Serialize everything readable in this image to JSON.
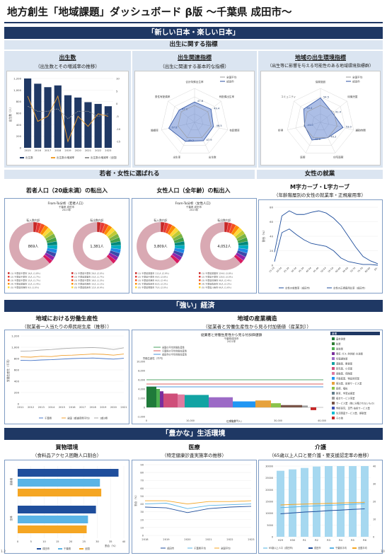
{
  "header": {
    "title": "地方創生「地域課題」ダッシュボード β版 ～千葉県 成田市～"
  },
  "sections": {
    "new_japan": "「新しい日本・楽しい日本」",
    "birth_indicators": "出生に関する指標",
    "young_women": "若者・女性に選ばれる",
    "female_work": "女性の就業",
    "strong_economy": "「強い」経済",
    "rich_life": "「豊かな」生活環境"
  },
  "panels": {
    "births": {
      "title": "出生数",
      "sub": "（出生数とその増減率の推移）"
    },
    "birth_related": {
      "title": "出生関連指標",
      "sub": "（出生に関連する基本的な指標）"
    },
    "birth_env": {
      "title": "地域の出生環境指標",
      "sub": "（出生等に影響を与える可能性のある地域環境指標群）"
    },
    "youth_migration": {
      "title": "若者人口（20歳未満）の転出入"
    },
    "female_migration": {
      "title": "女性人口（全年齢）の転出入"
    },
    "m_curve": {
      "title": "M字カーブ・L字カーブ",
      "sub": "（年齢階層別の女性の就業率・正規雇用率）"
    },
    "labor_productivity": {
      "title": "地域における労働生産性",
      "sub": "（就業者一人当たりの県民総生産（推移））"
    },
    "industry_structure": {
      "title": "地域の産業構造",
      "sub": "（従業者と労働生産性から見る付加価値（産業別））"
    },
    "shopping": {
      "title": "買物環境",
      "sub": "（食料品アクセス困難人口割合）"
    },
    "medical": {
      "title": "医療",
      "sub": "（特定健康診査実施率の推移）"
    },
    "care": {
      "title": "介護",
      "sub": "（65歳以上人口と要介護・要支援認定率の推移）"
    }
  },
  "births_chart": {
    "years": [
      "2015",
      "2016",
      "2017",
      "2018",
      "2019",
      "2020",
      "2021",
      "2022",
      "2023"
    ],
    "values": [
      1200,
      1110,
      1050,
      1080,
      910,
      870,
      790,
      760,
      720
    ],
    "yticks": [
      "1,200",
      "1,000",
      "800",
      "600",
      "400",
      "200",
      "0"
    ],
    "ylabel": "出生数（人）",
    "y2ticks": [
      "10",
      "5",
      "0",
      "-5",
      "-10",
      "-15"
    ],
    "legend": [
      "出生数",
      "出生数の増減率",
      "出生数の増減率（全国）"
    ]
  },
  "radar_related": {
    "legend": [
      "全国平均",
      "成田市"
    ],
    "labels": [
      "合計特殊出生率",
      "有配偶出生率",
      "有配偶率",
      "出生数",
      "出生率",
      "婚姻率",
      "男性有配偶率"
    ],
    "values": [
      "47.6",
      "49.4",
      "46.5",
      "47.9",
      "49.2",
      "57.8",
      "47.0"
    ]
  },
  "radar_env": {
    "legend": [
      "全国平均",
      "成田市"
    ],
    "labels": [
      "保育施設",
      "待機児童",
      "通勤時間",
      "住宅面積",
      "医療",
      "所得",
      "コミュニティ"
    ],
    "values": [
      "54.5",
      "41.4",
      "53.0",
      "45.2",
      "48.6",
      "43.0",
      "50.4"
    ]
  },
  "donut_youth": {
    "heading": "From-To分析（若者人口）",
    "sub1": "千葉県 成田市",
    "sub2": "2023年",
    "left_label": "転入数内訳",
    "left_center": "869人",
    "right_label": "転出数内訳",
    "right_center": "1,381人",
    "left_legend": [
      "(1) 千葉県千葉市 16人 (1.8%)",
      "(2) 千葉県千葉市 15人 (1.7%)",
      "(3) 千葉県千葉市 15人 (1.7%)",
      "(4) 千葉県富里市 12人 (1.4%)",
      "(5) 千葉県印西市 9人 (1.0%)"
    ],
    "right_legend": [
      "(1) 千葉県千葉市 28人 (2.0%)",
      "(2) 千葉県富里市 23人 (1.7%)",
      "(3) 千葉県千葉市 18人 (1.3%)",
      "(4) 千葉県印西市 15人 (1.1%)",
      "(5) 千葉県佐倉市 12人 (0.9%)"
    ]
  },
  "donut_female": {
    "heading": "From-To分析（女性人口）",
    "sub1": "千葉県 成田市",
    "sub2": "2023年",
    "left_label": "転入数内訳",
    "left_center": "3,809人",
    "right_label": "転出数内訳",
    "right_center": "4,052人",
    "left_legend": [
      "(1) 千葉県富里市 111人 (2.9%)",
      "(2) 千葉県千葉市 99人 (2.6%)",
      "(3) 千葉県印西市 90人 (2.4%)",
      "(4) 千葉県佐倉市 82人 (2.2%)",
      "(5) 千葉県香取市 75人 (2.0%)"
    ],
    "right_legend": [
      "(1) 千葉県富里市 154人 (3.8%)",
      "(2) 千葉県千葉市 120人 (3.0%)",
      "(3) 千葉県印西市 98人 (2.4%)",
      "(4) 千葉県佐倉市 90人 (2.2%)",
      "(5) 千葉県八街市 66人 (1.6%)"
    ]
  },
  "m_curve_chart": {
    "ylabel": "割合（%）",
    "yticks": [
      "80",
      "60",
      "40",
      "20",
      "0"
    ],
    "ages": [
      "15-19",
      "20-24",
      "25-29",
      "30-34",
      "35-39",
      "40-44",
      "45-49",
      "50-54",
      "55-59",
      "60-64",
      "65-69",
      "70-74",
      "75-79",
      "80-84",
      "85-"
    ],
    "employment": [
      18,
      68,
      75,
      70,
      70,
      73,
      75,
      72,
      65,
      55,
      40,
      25,
      12,
      6,
      2
    ],
    "regular": [
      5,
      45,
      50,
      42,
      35,
      30,
      28,
      26,
      20,
      10,
      5,
      3,
      1,
      1,
      0
    ],
    "legend": [
      "女性の就業率（成田市）",
      "女性の正規雇用比率（成田市）"
    ]
  },
  "productivity_chart": {
    "years": [
      "2011",
      "2012",
      "2013",
      "2014",
      "2015",
      "2016",
      "2017",
      "2018",
      "2019",
      "2020",
      "2021"
    ],
    "ylabel": "労働生産性（千円）",
    "yticks": [
      "1,200",
      "1,000",
      "800",
      "600",
      "400",
      "200",
      "0"
    ],
    "chiba": [
      830,
      825,
      840,
      835,
      855,
      860,
      870,
      880,
      875,
      860,
      880
    ],
    "national": [
      930,
      935,
      950,
      960,
      975,
      985,
      990,
      995,
      985,
      960,
      990
    ],
    "tokyo": [
      770,
      765,
      775,
      780,
      790,
      800,
      805,
      810,
      800,
      790,
      805
    ],
    "legend": [
      "千葉県",
      "全国（都道府県平均）",
      "1都3県"
    ]
  },
  "industry_chart": {
    "heading": "従業者と労働生産性から見る付加価値額",
    "sub1": "千葉県成田市",
    "sub2": "2021年",
    "ylabel": "労働生産性（千円）",
    "xlabel": "従業者数（人）",
    "xticks": [
      "0",
      "10,000",
      "20,000",
      "30,000",
      "40,000"
    ],
    "yticks": [
      "10,000",
      "8,000",
      "6,000",
      "4,000",
      "2,000",
      "0",
      "-2,000"
    ],
    "legend_lines": [
      "全国の平均労働生産性",
      "千葉県の平均労働生産性",
      "成田市の平均労働生産性"
    ],
    "legend_header": "産業",
    "industries": [
      {
        "name": "農林漁業",
        "color": "#1f7a3a"
      },
      {
        "name": "鉱業",
        "color": "#2e7d32"
      },
      {
        "name": "製造業",
        "color": "#4caf50"
      },
      {
        "name": "電気･ガス･熱供給･水道業",
        "color": "#7a2f9e"
      },
      {
        "name": "情報通信業",
        "color": "#9c6ac6"
      },
      {
        "name": "運輸業、郵便業",
        "color": "#12a3a3"
      },
      {
        "name": "卸売業、小売業",
        "color": "#cf4e7a"
      },
      {
        "name": "金融業、保険業",
        "color": "#e07aa0"
      },
      {
        "name": "不動産業、物品賃貸業",
        "color": "#2196f3"
      },
      {
        "name": "宿泊業、飲食サービス業",
        "color": "#e6a23c"
      },
      {
        "name": "医療、福祉",
        "color": "#8bc34a"
      },
      {
        "name": "教育、学習支援業",
        "color": "#607d8b"
      },
      {
        "name": "複合サービス事業",
        "color": "#9e9e9e"
      },
      {
        "name": "サービス業（他に分類されないもの）",
        "color": "#795548"
      },
      {
        "name": "学術研究、専門･技術サービス業",
        "color": "#3f51b5"
      },
      {
        "name": "生活関連サービス業、娯楽業",
        "color": "#00bcd4"
      },
      {
        "name": "その他",
        "color": "#c62828"
      }
    ]
  },
  "shopping_chart": {
    "xlabel": "割合（%）",
    "xticks": [
      "0",
      "5",
      "10",
      "15",
      "20",
      "25",
      "30",
      "35",
      "40"
    ],
    "groups": [
      "高齢者",
      "全体"
    ],
    "bars": [
      38.0,
      31.0,
      31.5,
      29.5,
      26.5,
      26.0
    ],
    "legend": [
      "成田市",
      "千葉県",
      "全国"
    ]
  },
  "medical_chart": {
    "years": [
      "2018",
      "2019",
      "2020",
      "2021",
      "2022",
      "2023"
    ],
    "ylabel": "割合（%）",
    "yticks": [
      "90",
      "80",
      "70",
      "60",
      "50",
      "40",
      "30",
      "20",
      "10",
      "0"
    ],
    "narita": [
      36,
      35,
      29,
      34,
      36,
      37
    ],
    "chiba": [
      40,
      41,
      34,
      38,
      39,
      40
    ],
    "national": [
      44,
      44,
      40,
      43,
      43,
      44
    ],
    "legend": [
      "成田市",
      "千葉県平均",
      "全国平均"
    ]
  },
  "care_chart": {
    "years": [
      "H29",
      "H30",
      "R1",
      "R2",
      "R3",
      "R4",
      "R5",
      "R6"
    ],
    "yticks": [
      "30000",
      "25000",
      "20000",
      "15000",
      "10000",
      "5000",
      "0"
    ],
    "y2ticks": [
      "40",
      "30",
      "20",
      "10",
      "0"
    ],
    "population": [
      28000,
      28600,
      29200,
      29800,
      30300,
      30800,
      31200,
      31500
    ],
    "narita": [
      13,
      13.5,
      14,
      14.3,
      14.8,
      15.1,
      15.5,
      15.8
    ],
    "chiba": [
      16.5,
      16.8,
      17.2,
      17.5,
      17.8,
      18.1,
      18.4,
      18.8
    ],
    "national": [
      18,
      18.3,
      18.5,
      18.7,
      18.9,
      19.1,
      19.3,
      19.5
    ],
    "legend": [
      "65歳以上人口（成田市）",
      "成田市",
      "千葉県平均",
      "全国平均"
    ]
  },
  "footer": {
    "left": "1.2",
    "right": "10"
  },
  "colors": {
    "navy": "#1f3864",
    "accent": "#1f4e9c",
    "light": "#dbe5f1"
  }
}
